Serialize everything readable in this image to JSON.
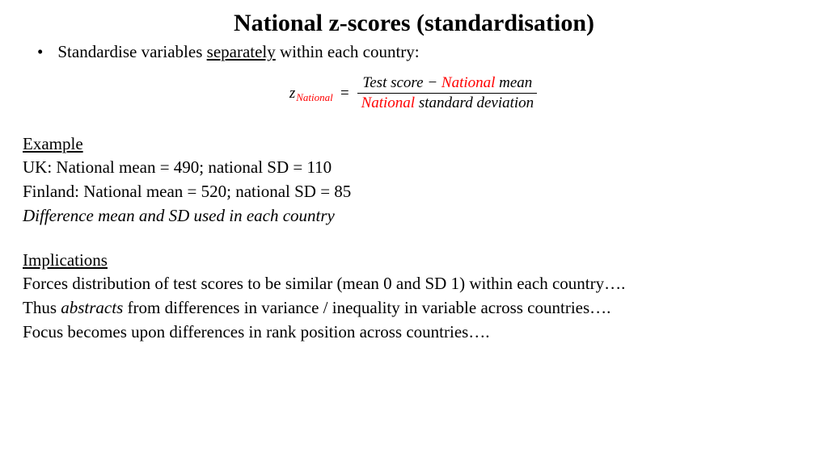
{
  "title": "National z-scores (standardisation)",
  "bullet": {
    "pre": "Standardise variables ",
    "underlined": "separately",
    "post": " within each country:"
  },
  "formula": {
    "lhs_sym": "z",
    "lhs_sub": "National",
    "num_a": "Test score",
    "num_minus": " − ",
    "num_b_red": "National",
    "num_b_rest": " mean",
    "den_a_red": "National",
    "den_rest": " standard deviation"
  },
  "example": {
    "heading": "Example",
    "uk": "UK: National mean = 490; national SD = 110",
    "finland": "Finland: National mean = 520; national SD = 85",
    "diff": "Difference mean and SD used in each country"
  },
  "implications": {
    "heading": "Implications",
    "l1": "Forces distribution of test scores to be similar (mean 0 and SD 1) within each country….",
    "l2_a": "Thus ",
    "l2_em": "abstracts",
    "l2_b": " from differences in variance / inequality in variable across countries….",
    "l3": "Focus becomes upon differences in rank position across countries…."
  },
  "colors": {
    "red": "#ff0000",
    "text": "#000000",
    "bg": "#ffffff"
  }
}
